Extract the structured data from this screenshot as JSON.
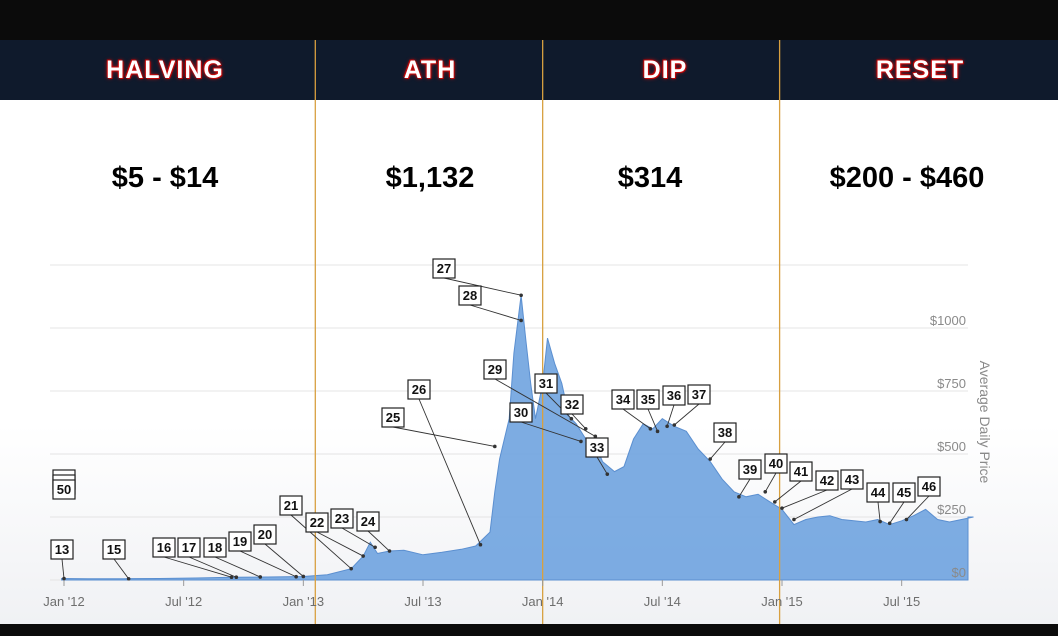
{
  "phases": [
    {
      "label": "HALVING",
      "price": "$5 - $14"
    },
    {
      "label": "ATH",
      "price": "$1,132"
    },
    {
      "label": "DIP",
      "price": "$314"
    },
    {
      "label": "RESET",
      "price": "$200 - $460"
    }
  ],
  "chart_data": {
    "type": "area",
    "title": "",
    "xlabel": "",
    "ylabel": "Average Daily Price",
    "y_axis_position": "right",
    "ylim": [
      0,
      1250
    ],
    "yticks": [
      0,
      250,
      500,
      750,
      1000
    ],
    "ytick_labels": [
      "$0",
      "$250",
      "$500",
      "$750",
      "$1000"
    ],
    "xticks": [
      {
        "label": "Jan '12",
        "t": 2012.0
      },
      {
        "label": "Jul '12",
        "t": 2012.5
      },
      {
        "label": "Jan '13",
        "t": 2013.0
      },
      {
        "label": "Jul '13",
        "t": 2013.5
      },
      {
        "label": "Jan '14",
        "t": 2014.0
      },
      {
        "label": "Jul '14",
        "t": 2014.5
      },
      {
        "label": "Jan '15",
        "t": 2015.0
      },
      {
        "label": "Jul '15",
        "t": 2015.5
      }
    ],
    "phase_boundaries": [
      2013.05,
      2014.0,
      2014.99
    ],
    "grid": true,
    "series": [
      {
        "color": "#6fa3df",
        "points": [
          [
            2011.99,
            6
          ],
          [
            2012.1,
            5
          ],
          [
            2012.25,
            5
          ],
          [
            2012.4,
            6
          ],
          [
            2012.55,
            8
          ],
          [
            2012.7,
            11
          ],
          [
            2012.85,
            12
          ],
          [
            2013.0,
            14
          ],
          [
            2013.1,
            21
          ],
          [
            2013.2,
            45
          ],
          [
            2013.25,
            95
          ],
          [
            2013.28,
            150
          ],
          [
            2013.31,
            105
          ],
          [
            2013.36,
            115
          ],
          [
            2013.42,
            118
          ],
          [
            2013.5,
            100
          ],
          [
            2013.58,
            110
          ],
          [
            2013.66,
            122
          ],
          [
            2013.72,
            135
          ],
          [
            2013.78,
            190
          ],
          [
            2013.8,
            350
          ],
          [
            2013.82,
            480
          ],
          [
            2013.86,
            640
          ],
          [
            2013.88,
            900
          ],
          [
            2013.91,
            1130
          ],
          [
            2013.93,
            950
          ],
          [
            2013.95,
            780
          ],
          [
            2013.97,
            640
          ],
          [
            2014.0,
            780
          ],
          [
            2014.02,
            960
          ],
          [
            2014.05,
            860
          ],
          [
            2014.08,
            780
          ],
          [
            2014.11,
            650
          ],
          [
            2014.14,
            620
          ],
          [
            2014.18,
            560
          ],
          [
            2014.22,
            540
          ],
          [
            2014.25,
            470
          ],
          [
            2014.3,
            430
          ],
          [
            2014.34,
            450
          ],
          [
            2014.38,
            560
          ],
          [
            2014.42,
            620
          ],
          [
            2014.46,
            600
          ],
          [
            2014.5,
            640
          ],
          [
            2014.55,
            610
          ],
          [
            2014.6,
            590
          ],
          [
            2014.65,
            520
          ],
          [
            2014.7,
            470
          ],
          [
            2014.75,
            400
          ],
          [
            2014.8,
            350
          ],
          [
            2014.85,
            330
          ],
          [
            2014.9,
            340
          ],
          [
            2014.95,
            310
          ],
          [
            2015.0,
            280
          ],
          [
            2015.05,
            220
          ],
          [
            2015.1,
            240
          ],
          [
            2015.15,
            250
          ],
          [
            2015.2,
            255
          ],
          [
            2015.25,
            240
          ],
          [
            2015.3,
            235
          ],
          [
            2015.35,
            230
          ],
          [
            2015.4,
            240
          ],
          [
            2015.45,
            220
          ],
          [
            2015.5,
            235
          ],
          [
            2015.55,
            255
          ],
          [
            2015.6,
            280
          ],
          [
            2015.65,
            240
          ],
          [
            2015.7,
            230
          ],
          [
            2015.75,
            240
          ],
          [
            2015.8,
            250
          ]
        ]
      }
    ],
    "annotations": [
      {
        "label": "50",
        "t": null,
        "y": null
      },
      {
        "label": "13",
        "t": 2012.0,
        "y": 6
      },
      {
        "label": "15",
        "t": 2012.27,
        "y": 5
      },
      {
        "label": "16",
        "t": 2012.7,
        "y": 11
      },
      {
        "label": "17",
        "t": 2012.72,
        "y": 11
      },
      {
        "label": "18",
        "t": 2012.82,
        "y": 12
      },
      {
        "label": "19",
        "t": 2012.97,
        "y": 13
      },
      {
        "label": "20",
        "t": 2013.0,
        "y": 14
      },
      {
        "label": "21",
        "t": 2013.2,
        "y": 45
      },
      {
        "label": "22",
        "t": 2013.25,
        "y": 95
      },
      {
        "label": "23",
        "t": 2013.3,
        "y": 130
      },
      {
        "label": "24",
        "t": 2013.36,
        "y": 115
      },
      {
        "label": "25",
        "t": 2013.8,
        "y": 530
      },
      {
        "label": "26",
        "t": 2013.74,
        "y": 140
      },
      {
        "label": "27",
        "t": 2013.91,
        "y": 1130
      },
      {
        "label": "28",
        "t": 2013.91,
        "y": 1030
      },
      {
        "label": "29",
        "t": 2014.22,
        "y": 570
      },
      {
        "label": "30",
        "t": 2014.16,
        "y": 550
      },
      {
        "label": "31",
        "t": 2014.12,
        "y": 640
      },
      {
        "label": "32",
        "t": 2014.18,
        "y": 600
      },
      {
        "label": "33",
        "t": 2014.27,
        "y": 420
      },
      {
        "label": "34",
        "t": 2014.45,
        "y": 600
      },
      {
        "label": "35",
        "t": 2014.48,
        "y": 590
      },
      {
        "label": "36",
        "t": 2014.52,
        "y": 610
      },
      {
        "label": "37",
        "t": 2014.55,
        "y": 615
      },
      {
        "label": "38",
        "t": 2014.7,
        "y": 480
      },
      {
        "label": "39",
        "t": 2014.82,
        "y": 330
      },
      {
        "label": "40",
        "t": 2014.93,
        "y": 350
      },
      {
        "label": "41",
        "t": 2014.97,
        "y": 310
      },
      {
        "label": "42",
        "t": 2015.0,
        "y": 285
      },
      {
        "label": "43",
        "t": 2015.05,
        "y": 240
      },
      {
        "label": "44",
        "t": 2015.41,
        "y": 232
      },
      {
        "label": "45",
        "t": 2015.45,
        "y": 225
      },
      {
        "label": "46",
        "t": 2015.52,
        "y": 240
      }
    ]
  }
}
